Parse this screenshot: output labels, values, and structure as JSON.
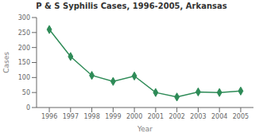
{
  "chart_data": {
    "type": "line",
    "title": "P & S Syphilis Cases, 1996-2005, Arkansas",
    "xlabel": "Year",
    "ylabel": "Cases",
    "x": [
      1996,
      1997,
      1998,
      1999,
      2000,
      2001,
      2002,
      2003,
      2004,
      2005
    ],
    "values": [
      260,
      170,
      107,
      87,
      105,
      50,
      35,
      52,
      50,
      55
    ],
    "color": "#2e8b57",
    "marker": "diamond",
    "xlim": [
      1995.4,
      2005.6
    ],
    "xticks": [
      1996,
      1997,
      1998,
      1999,
      2000,
      2001,
      2002,
      2003,
      2004,
      2005
    ],
    "ylim": [
      0,
      300
    ],
    "yticks": [
      0,
      50,
      100,
      150,
      200,
      250,
      300
    ],
    "grid": false
  }
}
